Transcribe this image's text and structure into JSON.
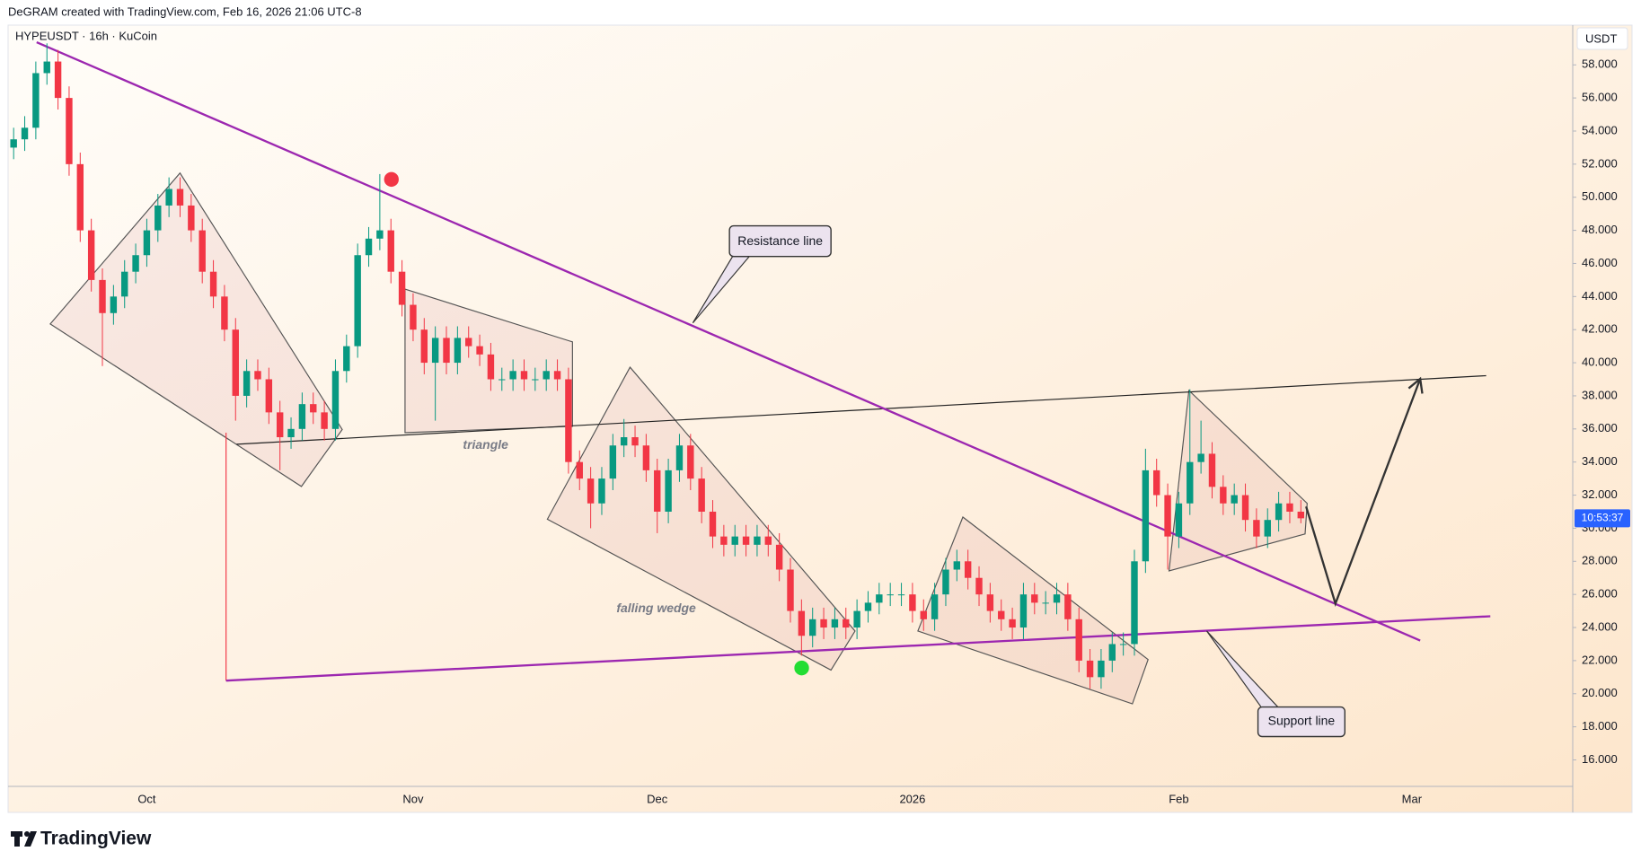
{
  "chart_data": {
    "type": "candlestick",
    "header": "DeGRAM created with TradingView.com, Feb 16, 2026 21:06 UTC-8",
    "symbol": "HYPEUSDT · 16h · KuCoin",
    "price_unit": "USDT",
    "countdown": "10:53:37",
    "brand": "TradingView",
    "annotations": [
      "Resistance line",
      "Support line",
      "triangle",
      "falling wedge"
    ],
    "up_color": "#089981",
    "down_color": "#f23645",
    "grid": false,
    "categories": [
      null,
      null,
      null,
      null,
      null,
      null,
      null,
      null,
      null,
      null,
      null,
      null,
      "Oct",
      null,
      null,
      null,
      null,
      null,
      null,
      null,
      null,
      null,
      null,
      null,
      null,
      null,
      null,
      null,
      null,
      null,
      null,
      null,
      null,
      null,
      null,
      null,
      "Nov",
      null,
      null,
      null,
      null,
      null,
      null,
      null,
      null,
      null,
      null,
      null,
      null,
      null,
      null,
      null,
      null,
      null,
      null,
      null,
      null,
      null,
      "Dec",
      null,
      null,
      null,
      null,
      null,
      null,
      null,
      null,
      null,
      null,
      null,
      null,
      null,
      null,
      null,
      null,
      null,
      null,
      null,
      null,
      null,
      null,
      "2026",
      null,
      null,
      null,
      null,
      null,
      null,
      null,
      null,
      null,
      null,
      null,
      null,
      null,
      null,
      null,
      null,
      null,
      null,
      null,
      null,
      null,
      null,
      null,
      "Feb",
      null,
      null,
      null,
      null,
      null,
      null,
      null,
      null,
      null,
      null,
      null,
      null,
      null,
      null,
      null,
      null,
      null,
      null,
      null,
      null,
      "Mar",
      null,
      null,
      null,
      null,
      null,
      null,
      null,
      null,
      null,
      null,
      null,
      null,
      null,
      null
    ],
    "open": [
      53,
      53.5,
      54.2,
      57.5,
      58.2,
      56,
      52,
      48,
      45,
      43,
      44,
      45.5,
      46.5,
      48,
      49.5,
      50.5,
      49.5,
      48,
      45.5,
      44,
      42,
      38,
      39.5,
      39,
      37,
      35.5,
      36,
      37.5,
      37,
      36,
      39.5,
      41,
      46.5,
      47.5,
      48,
      45.5,
      43.5,
      42,
      40,
      41.5,
      40,
      41.5,
      41,
      40.5,
      39,
      39,
      39.5,
      39,
      39,
      39.5,
      39,
      34,
      33,
      31.5,
      33,
      35,
      35.5,
      35,
      33.5,
      31,
      33.5,
      35,
      33,
      31,
      29.5,
      29,
      29.5,
      29,
      29.5,
      29,
      27.5,
      25,
      23.5,
      24.5,
      24,
      24.5,
      24,
      25,
      25.5,
      26,
      26,
      26,
      25,
      24.5,
      26,
      27.5,
      28,
      27,
      26,
      25,
      24.5,
      24,
      26,
      25.5,
      25.5,
      26,
      24.5,
      22,
      21,
      22,
      23,
      23,
      28,
      33.5,
      32,
      29.5,
      31.5,
      34,
      34.5,
      32.5,
      31.5,
      32,
      30.5,
      29.5,
      30.5,
      31.5,
      31,
      null,
      null,
      null,
      null,
      null,
      null,
      null,
      null,
      null,
      null,
      null,
      null,
      null,
      null,
      null,
      null,
      null,
      null,
      null,
      null,
      null,
      null,
      null,
      null
    ],
    "high": [
      54.2,
      54.9,
      58.2,
      59.3,
      58.9,
      56.7,
      52.7,
      48.7,
      45.7,
      44.7,
      46.2,
      47.2,
      48.7,
      50.2,
      51.2,
      51.2,
      50.2,
      48.7,
      46.2,
      44.7,
      42.7,
      40.2,
      40.2,
      39.7,
      37.7,
      36.7,
      38.2,
      38.2,
      37.7,
      40.2,
      41.7,
      47.2,
      48.2,
      51.4,
      48.7,
      46.2,
      44.2,
      42.7,
      42.2,
      42.2,
      42.2,
      42.2,
      41.7,
      41.2,
      39.7,
      40.2,
      40.2,
      39.7,
      40.2,
      40.2,
      39.7,
      34.7,
      33.7,
      33.7,
      35.7,
      36.6,
      36.2,
      35.7,
      34.2,
      34.2,
      35.7,
      35.7,
      33.7,
      31.7,
      30.2,
      30.2,
      30.2,
      30.2,
      30.2,
      29.7,
      28.2,
      25.7,
      25.2,
      25.2,
      25.2,
      25.2,
      25.7,
      26.2,
      26.7,
      26.7,
      26.7,
      26.7,
      25.7,
      26.7,
      28.2,
      28.7,
      28.7,
      27.7,
      26.7,
      25.7,
      25.2,
      26.7,
      26.7,
      26.2,
      26.7,
      26.7,
      25.2,
      22.7,
      22.7,
      23.7,
      23.7,
      28.7,
      34.8,
      34.2,
      32.7,
      32.2,
      38.4,
      36.5,
      35.2,
      33.2,
      32.7,
      32.7,
      31.2,
      31.2,
      32.2,
      32.2,
      31.7,
      null,
      null,
      null,
      null,
      null,
      null,
      null,
      null,
      null,
      null,
      null,
      null,
      null,
      null,
      null,
      null,
      null,
      null,
      null,
      null,
      null,
      null,
      null,
      null
    ],
    "low": [
      52.3,
      52.8,
      53.5,
      56.8,
      55.3,
      51.3,
      47.3,
      44.3,
      39.8,
      42.3,
      43.3,
      44.8,
      45.8,
      47.3,
      48.8,
      48.8,
      47.3,
      44.8,
      43.3,
      41.3,
      36.5,
      37.3,
      38.3,
      36.3,
      33.5,
      34.8,
      35.3,
      36.3,
      35.3,
      35.3,
      38.8,
      40.3,
      45.8,
      46.8,
      44.8,
      42.8,
      41.3,
      39.3,
      36.5,
      39.3,
      39.3,
      40.3,
      39.8,
      38.3,
      38.3,
      38.3,
      38.3,
      38.3,
      38.3,
      38.3,
      33.3,
      32.3,
      30.0,
      30.8,
      32.3,
      34.3,
      34.3,
      32.8,
      29.7,
      30.3,
      32.8,
      32.3,
      30.3,
      28.8,
      28.3,
      28.3,
      28.3,
      28.3,
      28.3,
      26.8,
      24.3,
      22.3,
      22.8,
      23.3,
      23.3,
      23.3,
      23.3,
      24.3,
      24.8,
      25.3,
      25.3,
      24.3,
      23.8,
      23.8,
      25.3,
      26.8,
      26.3,
      25.3,
      24.3,
      23.8,
      23.3,
      23.3,
      24.8,
      24.8,
      24.8,
      23.8,
      21.3,
      20.3,
      20.3,
      21.3,
      22.3,
      22.3,
      27.3,
      31.3,
      27.5,
      28.8,
      30.8,
      33.3,
      31.8,
      30.8,
      30.8,
      29.8,
      28.8,
      28.8,
      29.8,
      30.3,
      30.3,
      null,
      null,
      null,
      null,
      null,
      null,
      null,
      null,
      null,
      null,
      null,
      null,
      null,
      null,
      null,
      null,
      null,
      null,
      null,
      null,
      null,
      null,
      null,
      null
    ],
    "close": [
      53.5,
      54.2,
      57.5,
      58.2,
      56,
      52,
      48,
      45,
      43,
      44,
      45.5,
      46.5,
      48,
      49.5,
      50.5,
      49.5,
      48,
      45.5,
      44,
      42,
      38,
      39.5,
      39,
      37,
      35.5,
      36,
      37.5,
      37,
      36,
      39.5,
      41,
      46.5,
      47.5,
      48,
      45.5,
      43.5,
      42,
      40,
      41.5,
      40,
      41.5,
      41,
      40.5,
      39,
      39,
      39.5,
      39,
      39,
      39.5,
      39,
      34,
      33,
      31.5,
      33,
      35,
      35.5,
      35,
      33.5,
      31,
      33.5,
      35,
      33,
      31,
      29.5,
      29,
      29.5,
      29,
      29.5,
      29,
      27.5,
      25,
      23.5,
      24.5,
      24,
      24.5,
      24,
      25,
      25.5,
      26,
      26,
      26,
      25,
      24.5,
      26,
      27.5,
      28,
      27,
      26,
      25,
      24.5,
      24,
      26,
      25.5,
      25.5,
      26,
      24.5,
      22,
      21,
      22,
      23,
      23,
      28,
      33.5,
      32,
      29.5,
      31.5,
      34,
      34.5,
      32.5,
      31.5,
      32,
      30.5,
      29.5,
      30.5,
      31.5,
      31,
      30.6,
      null,
      null,
      null,
      null,
      null,
      null,
      null,
      null,
      null,
      null,
      null,
      null,
      null,
      null,
      null,
      null,
      null,
      null,
      null,
      null,
      null,
      null,
      null,
      null
    ],
    "ylim": [
      14.4,
      60.4
    ],
    "yticks": [
      {
        "value": 16,
        "label": "16.000"
      },
      {
        "value": 18,
        "label": "18.000"
      },
      {
        "value": 20,
        "label": "20.000"
      },
      {
        "value": 22,
        "label": "22.000"
      },
      {
        "value": 24,
        "label": "24.000"
      },
      {
        "value": 26,
        "label": "26.000"
      },
      {
        "value": 28,
        "label": "28.000"
      },
      {
        "value": 30,
        "label": "30.000"
      },
      {
        "value": 32,
        "label": "32.000"
      },
      {
        "value": 34,
        "label": "34.000"
      },
      {
        "value": 36,
        "label": "36.000"
      },
      {
        "value": 38,
        "label": "38.000"
      },
      {
        "value": 40,
        "label": "40.000"
      },
      {
        "value": 42,
        "label": "42.000"
      },
      {
        "value": 44,
        "label": "44.000"
      },
      {
        "value": 46,
        "label": "46.000"
      },
      {
        "value": 48,
        "label": "48.000"
      },
      {
        "value": 50,
        "label": "50.000"
      },
      {
        "value": 52,
        "label": "52.000"
      },
      {
        "value": 54,
        "label": "54.000"
      },
      {
        "value": 56,
        "label": "56.000"
      },
      {
        "value": 58,
        "label": "58.000"
      }
    ]
  }
}
